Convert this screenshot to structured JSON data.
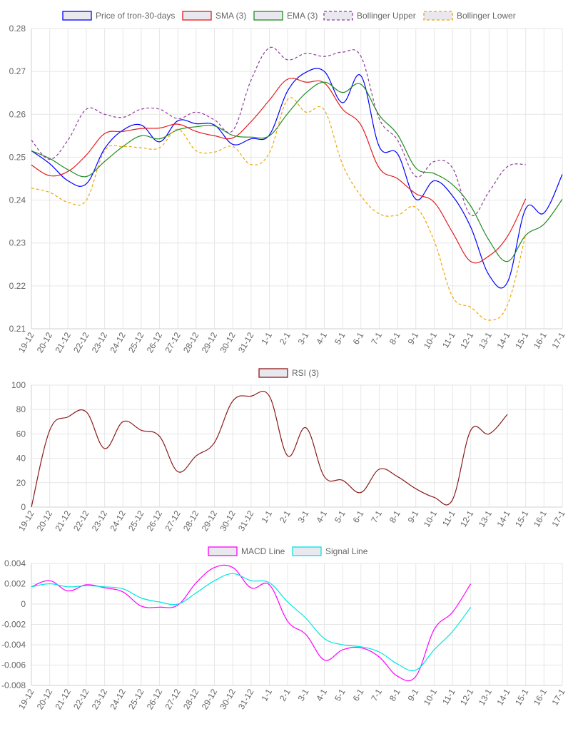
{
  "colors": {
    "price": "#0000ff",
    "sma": "#e41a1c",
    "ema": "#228b22",
    "bb_upper": "#8e3b9b",
    "bb_lower": "#f0a500",
    "rsi": "#8b1a1a",
    "macd": "#ff00ff",
    "signal": "#00e5e5"
  },
  "chart_data": [
    {
      "type": "line",
      "categories": [
        "19-12",
        "20-12",
        "21-12",
        "22-12",
        "23-12",
        "24-12",
        "25-12",
        "26-12",
        "27-12",
        "28-12",
        "29-12",
        "30-12",
        "31-12",
        "1-1",
        "2-1",
        "3-1",
        "4-1",
        "5-1",
        "6-1",
        "7-1",
        "8-1",
        "9-1",
        "10-1",
        "11-1",
        "12-1",
        "13-1",
        "14-1",
        "15-1",
        "16-1",
        "17-1"
      ],
      "ylim": [
        0.21,
        0.28
      ],
      "yticks": [
        "0.28",
        "0.27",
        "0.26",
        "0.25",
        "0.24",
        "0.23",
        "0.22",
        "0.21"
      ],
      "ytick_values": [
        0.28,
        0.27,
        0.26,
        0.25,
        0.24,
        0.23,
        0.22,
        0.21
      ],
      "legend_position": "top",
      "grid": true,
      "series": [
        {
          "name": "Price of tron-30-days",
          "color_key": "price",
          "dashed": false,
          "values": [
            0.2515,
            0.2485,
            0.2445,
            0.2438,
            0.252,
            0.2563,
            0.2575,
            0.2536,
            0.2585,
            0.2578,
            0.2575,
            0.253,
            0.2543,
            0.2552,
            0.2655,
            0.2698,
            0.27,
            0.2627,
            0.269,
            0.2525,
            0.2508,
            0.2402,
            0.2445,
            0.241,
            0.2337,
            0.2225,
            0.2208,
            0.238,
            0.237,
            0.246
          ]
        },
        {
          "name": "SMA (3)",
          "color_key": "sma",
          "dashed": false,
          "values": [
            0.2482,
            0.2457,
            0.2467,
            0.2505,
            0.2555,
            0.256,
            0.2567,
            0.2568,
            0.2577,
            0.256,
            0.255,
            0.2545,
            0.2583,
            0.2633,
            0.2682,
            0.2675,
            0.2673,
            0.2612,
            0.2575,
            0.2475,
            0.245,
            0.2415,
            0.2395,
            0.2325,
            0.2257,
            0.227,
            0.2315,
            0.2403,
            null,
            null
          ]
        },
        {
          "name": "EMA (3)",
          "color_key": "ema",
          "dashed": false,
          "values": [
            0.2515,
            0.2497,
            0.2471,
            0.2455,
            0.249,
            0.2525,
            0.255,
            0.2543,
            0.2564,
            0.2571,
            0.2573,
            0.2551,
            0.2547,
            0.255,
            0.2602,
            0.265,
            0.2675,
            0.2651,
            0.267,
            0.2598,
            0.2553,
            0.2475,
            0.2462,
            0.2436,
            0.2386,
            0.2306,
            0.2257,
            0.2318,
            0.2344,
            0.2402
          ]
        },
        {
          "name": "Bollinger Upper",
          "color_key": "bb_upper",
          "dashed": true,
          "values": [
            0.254,
            0.2495,
            0.254,
            0.2612,
            0.26,
            0.2593,
            0.2612,
            0.2612,
            0.259,
            0.2605,
            0.2587,
            0.2562,
            0.268,
            0.2755,
            0.2727,
            0.2742,
            0.2735,
            0.2745,
            0.2735,
            0.259,
            0.254,
            0.2455,
            0.249,
            0.2475,
            0.2365,
            0.242,
            0.2478,
            0.2483,
            null,
            null
          ]
        },
        {
          "name": "Bollinger Lower",
          "color_key": "bb_lower",
          "dashed": true,
          "values": [
            0.2428,
            0.2418,
            0.2395,
            0.24,
            0.2515,
            0.2525,
            0.2522,
            0.2522,
            0.2565,
            0.2515,
            0.2512,
            0.2525,
            0.2483,
            0.251,
            0.2635,
            0.2605,
            0.261,
            0.2483,
            0.241,
            0.2368,
            0.2365,
            0.2383,
            0.2305,
            0.2175,
            0.215,
            0.212,
            0.2155,
            0.232,
            null,
            null
          ]
        }
      ]
    },
    {
      "type": "line",
      "categories": [
        "19-12",
        "20-12",
        "21-12",
        "22-12",
        "23-12",
        "24-12",
        "25-12",
        "26-12",
        "27-12",
        "28-12",
        "29-12",
        "30-12",
        "31-12",
        "1-1",
        "2-1",
        "3-1",
        "4-1",
        "5-1",
        "6-1",
        "7-1",
        "8-1",
        "9-1",
        "10-1",
        "11-1",
        "12-1",
        "13-1",
        "14-1",
        "15-1",
        "16-1",
        "17-1"
      ],
      "ylim": [
        0,
        100
      ],
      "yticks": [
        "100",
        "80",
        "60",
        "40",
        "20",
        "0"
      ],
      "ytick_values": [
        100,
        80,
        60,
        40,
        20,
        0
      ],
      "legend_position": "top",
      "grid": true,
      "series": [
        {
          "name": "RSI (3)",
          "color_key": "rsi",
          "dashed": false,
          "values": [
            0,
            63,
            74,
            78,
            48,
            70,
            63,
            58,
            29,
            42,
            53,
            87,
            91,
            91,
            42,
            65,
            25,
            22,
            12,
            31,
            25,
            15,
            8,
            6,
            63,
            60,
            76,
            null,
            null,
            null
          ]
        }
      ]
    },
    {
      "type": "line",
      "categories": [
        "19-12",
        "20-12",
        "21-12",
        "22-12",
        "23-12",
        "24-12",
        "25-12",
        "26-12",
        "27-12",
        "28-12",
        "29-12",
        "30-12",
        "31-12",
        "1-1",
        "2-1",
        "3-1",
        "4-1",
        "5-1",
        "6-1",
        "7-1",
        "8-1",
        "9-1",
        "10-1",
        "11-1",
        "12-1",
        "13-1",
        "14-1",
        "15-1",
        "16-1",
        "17-1"
      ],
      "ylim": [
        -0.008,
        0.004
      ],
      "yticks": [
        "0.004",
        "0.002",
        "0",
        "-0.002",
        "-0.004",
        "-0.006",
        "-0.008"
      ],
      "ytick_values": [
        0.004,
        0.002,
        0,
        -0.002,
        -0.004,
        -0.006,
        -0.008
      ],
      "legend_position": "top",
      "grid": true,
      "series": [
        {
          "name": "MACD Line",
          "color_key": "macd",
          "dashed": false,
          "values": [
            0.0017,
            0.0023,
            0.0013,
            0.0019,
            0.0016,
            0.0012,
            -0.0002,
            -0.0003,
            -0.0001,
            0.0021,
            0.0036,
            0.0036,
            0.0016,
            0.0019,
            -0.0017,
            -0.003,
            -0.0055,
            -0.0045,
            -0.0043,
            -0.0052,
            -0.0071,
            -0.0071,
            -0.0025,
            -0.0008,
            0.002,
            null,
            null,
            null,
            null,
            null
          ]
        },
        {
          "name": "Signal Line",
          "color_key": "signal",
          "dashed": false,
          "values": [
            0.0017,
            0.002,
            0.0017,
            0.0018,
            0.0017,
            0.0015,
            0.0006,
            0.0002,
            0.0,
            0.0011,
            0.0023,
            0.003,
            0.0023,
            0.0021,
            0.0002,
            -0.0014,
            -0.0034,
            -0.004,
            -0.0042,
            -0.0047,
            -0.0059,
            -0.0065,
            -0.0045,
            -0.0027,
            -0.0003,
            null,
            null,
            null,
            null,
            null
          ]
        }
      ]
    }
  ]
}
